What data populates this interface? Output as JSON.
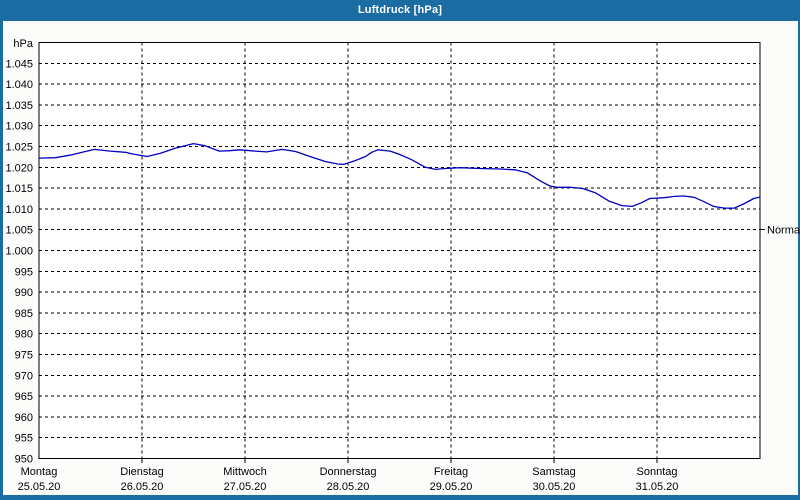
{
  "window": {
    "title": "Luftdruck [hPa]"
  },
  "colors": {
    "chrome_blue": "#1c6ca4",
    "title_text": "#ffffff",
    "line_blue": "#0000c0",
    "grid_black": "#000000",
    "plot_bg": "#ffffff",
    "content_bg": "#fcfdfb"
  },
  "chart_data": {
    "type": "line",
    "title": "Luftdruck [hPa]",
    "unit_label": "hPa",
    "ylim": [
      950,
      1050
    ],
    "ytick_step": 5,
    "grid": "dashed",
    "legend_position": "none",
    "yticks": [
      {
        "value": 1045,
        "label": "1.045"
      },
      {
        "value": 1040,
        "label": "1.040"
      },
      {
        "value": 1035,
        "label": "1.035"
      },
      {
        "value": 1030,
        "label": "1.030"
      },
      {
        "value": 1025,
        "label": "1.025"
      },
      {
        "value": 1020,
        "label": "1.020"
      },
      {
        "value": 1015,
        "label": "1.015"
      },
      {
        "value": 1010,
        "label": "1.010"
      },
      {
        "value": 1005,
        "label": "1.005"
      },
      {
        "value": 1000,
        "label": "1.000"
      },
      {
        "value": 995,
        "label": "995"
      },
      {
        "value": 990,
        "label": "990"
      },
      {
        "value": 985,
        "label": "985"
      },
      {
        "value": 980,
        "label": "980"
      },
      {
        "value": 975,
        "label": "975"
      },
      {
        "value": 970,
        "label": "970"
      },
      {
        "value": 965,
        "label": "965"
      },
      {
        "value": 960,
        "label": "960"
      },
      {
        "value": 955,
        "label": "955"
      },
      {
        "value": 950,
        "label": "950"
      }
    ],
    "days": [
      {
        "weekday": "Montag",
        "date": "25.05.20"
      },
      {
        "weekday": "Dienstag",
        "date": "26.05.20"
      },
      {
        "weekday": "Mittwoch",
        "date": "27.05.20"
      },
      {
        "weekday": "Donnerstag",
        "date": "28.05.20"
      },
      {
        "weekday": "Freitag",
        "date": "29.05.20"
      },
      {
        "weekday": "Samstag",
        "date": "30.05.20"
      },
      {
        "weekday": "Sonntag",
        "date": "31.05.20"
      }
    ],
    "normal_marker": {
      "label": "Normal",
      "value": 1005
    },
    "series": [
      {
        "name": "Luftdruck",
        "color": "#0000c0",
        "x_unit": "days_from_monday_start",
        "x": [
          0.0,
          0.16,
          0.3,
          0.45,
          0.54,
          0.69,
          0.84,
          0.91,
          1.05,
          1.18,
          1.32,
          1.5,
          1.61,
          1.75,
          1.85,
          1.95,
          2.1,
          2.21,
          2.36,
          2.49,
          2.63,
          2.78,
          2.9,
          2.96,
          3.07,
          3.17,
          3.23,
          3.29,
          3.41,
          3.5,
          3.62,
          3.75,
          3.85,
          3.94,
          4.09,
          4.28,
          4.48,
          4.62,
          4.74,
          4.86,
          4.96,
          5.03,
          5.16,
          5.28,
          5.4,
          5.54,
          5.66,
          5.76,
          5.85,
          5.93,
          6.07,
          6.17,
          6.26,
          6.36,
          6.46,
          6.55,
          6.65,
          6.75,
          6.85,
          6.94,
          6.99
        ],
        "values": [
          1022.2,
          1022.3,
          1022.9,
          1023.8,
          1024.3,
          1023.9,
          1023.6,
          1023.2,
          1022.6,
          1023.4,
          1024.6,
          1025.7,
          1025.2,
          1023.9,
          1024.0,
          1024.2,
          1023.9,
          1023.7,
          1024.3,
          1023.8,
          1022.6,
          1021.4,
          1020.8,
          1020.7,
          1021.6,
          1022.6,
          1023.6,
          1024.2,
          1023.9,
          1023.1,
          1021.8,
          1020.0,
          1019.5,
          1019.7,
          1019.9,
          1019.7,
          1019.6,
          1019.4,
          1018.7,
          1016.8,
          1015.5,
          1015.2,
          1015.2,
          1014.9,
          1013.9,
          1011.8,
          1010.8,
          1010.6,
          1011.5,
          1012.5,
          1012.7,
          1013.0,
          1013.1,
          1012.8,
          1011.7,
          1010.6,
          1010.2,
          1010.2,
          1011.3,
          1012.5,
          1012.8
        ]
      }
    ]
  }
}
